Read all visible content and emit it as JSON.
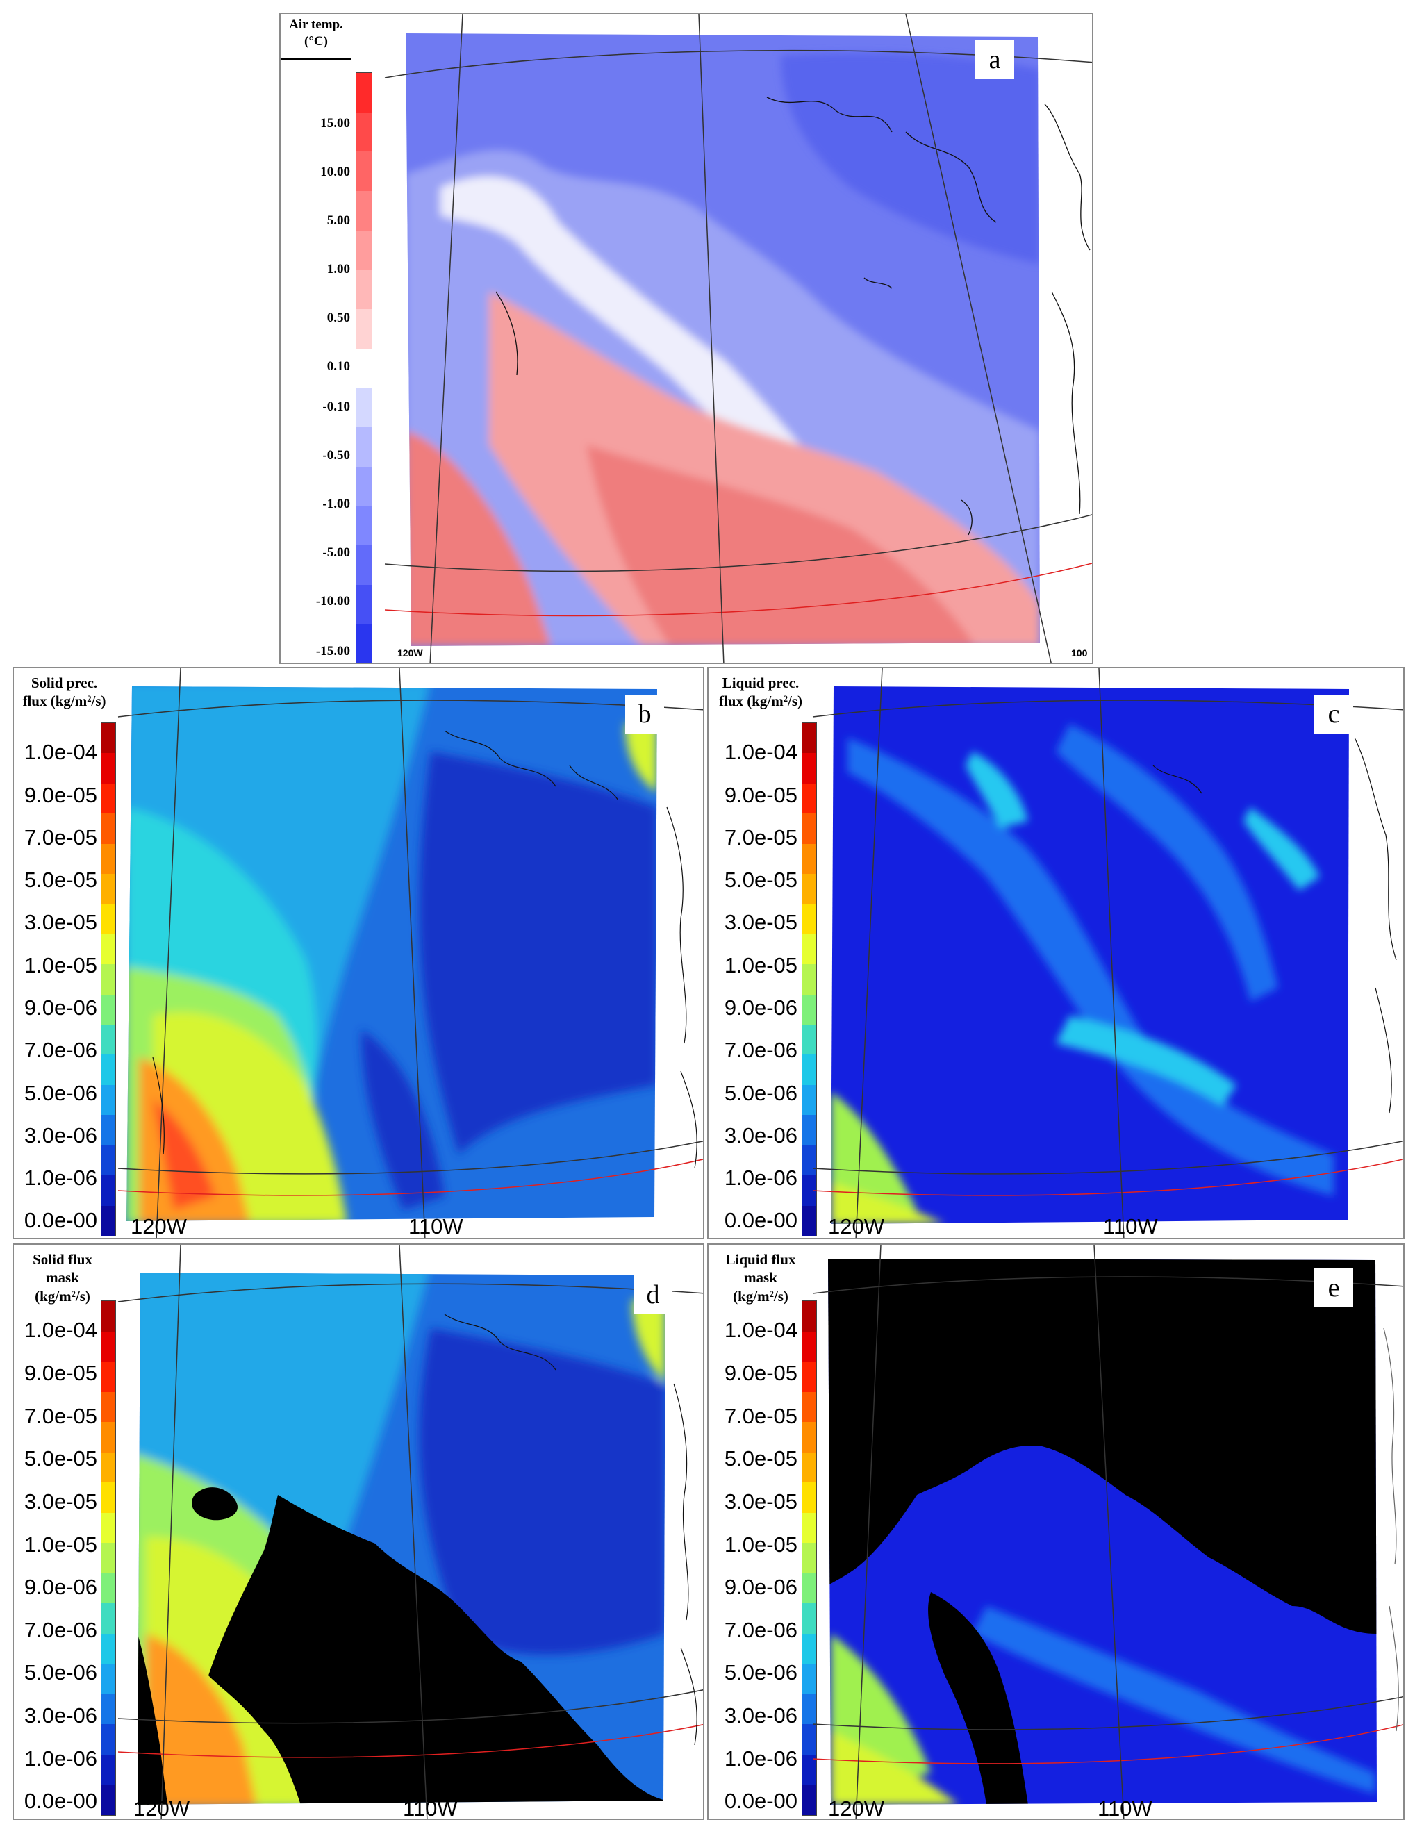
{
  "panels": [
    {
      "id": "a",
      "letter": "a",
      "legend_title": [
        "Air temp.",
        "(°C)"
      ],
      "ticks": [
        "15.00",
        "10.00",
        "5.00",
        "1.00",
        "0.50",
        "0.10",
        "-0.10",
        "-0.50",
        "-1.00",
        "-5.00",
        "-10.00",
        "-15.00"
      ],
      "lon_labels": [
        "120W",
        "100"
      ],
      "colorbar_colors": [
        "#ff2a2a",
        "#ff4a4a",
        "#ff6565",
        "#ff8282",
        "#ff9d9d",
        "#ffb8b8",
        "#ffd3d3",
        "#ffffff",
        "#d4d8ff",
        "#b5baff",
        "#9aa0ff",
        "#7f87ff",
        "#626bfa",
        "#4650f5",
        "#2a36ef"
      ],
      "map_colors": {
        "cold": "#6f7af2",
        "cool": "#9aa2f5",
        "pale": "#c8ccf8",
        "white": "#eeeefc",
        "warm": "#f5a0a0",
        "hot": "#ef7d7d",
        "deep": "#5865ee"
      }
    },
    {
      "id": "b",
      "letter": "b",
      "legend_title": [
        "Solid prec.",
        "flux (kg/m²/s)"
      ],
      "ticks": [
        "1.0e-04",
        "9.0e-05",
        "7.0e-05",
        "5.0e-05",
        "3.0e-05",
        "1.0e-05",
        "9.0e-06",
        "7.0e-06",
        "5.0e-06",
        "3.0e-06",
        "1.0e-06",
        "0.0e-00"
      ],
      "lon_labels": [
        "120W",
        "110W"
      ],
      "colorbar_colors": [
        "#b30000",
        "#e60000",
        "#ff2200",
        "#ff5a00",
        "#ff8c00",
        "#ffb000",
        "#ffe000",
        "#e6ff30",
        "#b5f550",
        "#7ef07a",
        "#3fdcc0",
        "#1ec8e8",
        "#1aa5f0",
        "#1575e8",
        "#0f45d8",
        "#0a1ec0",
        "#0a0aa0"
      ],
      "map_colors": {
        "bg": "#1e6fe0",
        "deep": "#1434c8",
        "mid": "#22a8e8",
        "cyan": "#2ad4e0",
        "green": "#9cf060",
        "yellow": "#d6f530",
        "orange": "#ff9a20",
        "red": "#ff5020"
      }
    },
    {
      "id": "c",
      "letter": "c",
      "legend_title": [
        "Liquid prec.",
        "flux (kg/m²/s)"
      ],
      "ticks": [
        "1.0e-04",
        "9.0e-05",
        "7.0e-05",
        "5.0e-05",
        "3.0e-05",
        "1.0e-05",
        "9.0e-06",
        "7.0e-06",
        "5.0e-06",
        "3.0e-06",
        "1.0e-06",
        "0.0e-00"
      ],
      "lon_labels": [
        "120W",
        "110W"
      ],
      "colorbar_colors": [
        "#b30000",
        "#e60000",
        "#ff2200",
        "#ff5a00",
        "#ff8c00",
        "#ffb000",
        "#ffe000",
        "#e6ff30",
        "#b5f550",
        "#7ef07a",
        "#3fdcc0",
        "#1ec8e8",
        "#1aa5f0",
        "#1575e8",
        "#0f45d8",
        "#0a1ec0",
        "#0a0aa0"
      ],
      "map_colors": {
        "bg": "#1420e0",
        "deep": "#0c14c8",
        "mid": "#1a6ef0",
        "cyan": "#28c8f0",
        "green": "#a0f050",
        "yellow": "#d6f530"
      }
    },
    {
      "id": "d",
      "letter": "d",
      "legend_title": [
        "Solid flux",
        "mask",
        "(kg/m²/s)"
      ],
      "ticks": [
        "1.0e-04",
        "9.0e-05",
        "7.0e-05",
        "5.0e-05",
        "3.0e-05",
        "1.0e-05",
        "9.0e-06",
        "7.0e-06",
        "5.0e-06",
        "3.0e-06",
        "1.0e-06",
        "0.0e-00"
      ],
      "lon_labels": [
        "120W",
        "110W"
      ],
      "colorbar_colors": [
        "#b30000",
        "#e60000",
        "#ff2200",
        "#ff5a00",
        "#ff8c00",
        "#ffb000",
        "#ffe000",
        "#e6ff30",
        "#b5f550",
        "#7ef07a",
        "#3fdcc0",
        "#1ec8e8",
        "#1aa5f0",
        "#1575e8",
        "#0f45d8",
        "#0a1ec0",
        "#0a0aa0"
      ],
      "map_colors": {
        "bg": "#1e6fe0",
        "deep": "#1434c8",
        "mid": "#22a8e8",
        "green": "#9cf060",
        "yellow": "#d6f530",
        "orange": "#ff9a20",
        "mask": "#000000"
      }
    },
    {
      "id": "e",
      "letter": "e",
      "legend_title": [
        "Liquid flux",
        "mask",
        "(kg/m²/s)"
      ],
      "ticks": [
        "1.0e-04",
        "9.0e-05",
        "7.0e-05",
        "5.0e-05",
        "3.0e-05",
        "1.0e-05",
        "9.0e-06",
        "7.0e-06",
        "5.0e-06",
        "3.0e-06",
        "1.0e-06",
        "0.0e-00"
      ],
      "lon_labels": [
        "120W",
        "110W"
      ],
      "colorbar_colors": [
        "#b30000",
        "#e60000",
        "#ff2200",
        "#ff5a00",
        "#ff8c00",
        "#ffb000",
        "#ffe000",
        "#e6ff30",
        "#b5f550",
        "#7ef07a",
        "#3fdcc0",
        "#1ec8e8",
        "#1aa5f0",
        "#1575e8",
        "#0f45d8",
        "#0a1ec0",
        "#0a0aa0"
      ],
      "map_colors": {
        "bg": "#1420e0",
        "mid": "#1a6ef0",
        "green": "#a0f050",
        "yellow": "#d6f530",
        "mask": "#000000"
      }
    }
  ]
}
